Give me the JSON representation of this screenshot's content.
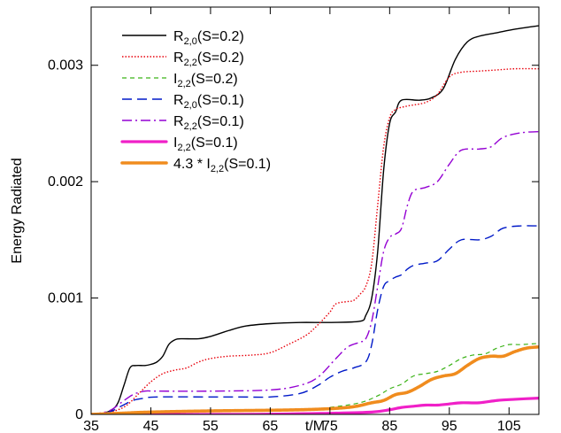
{
  "chart_data": {
    "type": "line",
    "title": "",
    "xlabel": "t/M",
    "ylabel": "Energy Radiated",
    "xlim": [
      35,
      110
    ],
    "ylim": [
      0,
      0.0035
    ],
    "xticks": [
      35,
      45,
      55,
      65,
      75,
      85,
      95,
      105
    ],
    "xtick_labels": [
      "35",
      "45",
      "55",
      "65",
      "75",
      "85",
      "95",
      "105"
    ],
    "yticks": [
      0,
      0.001,
      0.002,
      0.003
    ],
    "ytick_labels": [
      "0",
      "0.001",
      "0.002",
      "0.003"
    ],
    "grid": false,
    "legend_position": "top-left",
    "series": [
      {
        "name": "R2,0(S=0.2)",
        "legend": {
          "base": "R",
          "sub": "2,0",
          "rest": "(S=0.2)"
        },
        "color": "#000000",
        "style": "solid",
        "points": [
          [
            35,
            0
          ],
          [
            37,
            1e-05
          ],
          [
            38.5,
            4e-05
          ],
          [
            39.5,
            0.0001
          ],
          [
            40.5,
            0.00025
          ],
          [
            41.5,
            0.0004
          ],
          [
            42.5,
            0.00042
          ],
          [
            44,
            0.00042
          ],
          [
            45,
            0.00043
          ],
          [
            46,
            0.00045
          ],
          [
            47,
            0.0005
          ],
          [
            48,
            0.0006
          ],
          [
            49,
            0.00064
          ],
          [
            50,
            0.00065
          ],
          [
            53,
            0.00065
          ],
          [
            55,
            0.00067
          ],
          [
            58,
            0.00072
          ],
          [
            61,
            0.00076
          ],
          [
            65,
            0.00078
          ],
          [
            70,
            0.00079
          ],
          [
            75,
            0.00079
          ],
          [
            80,
            0.0008
          ],
          [
            81,
            0.00085
          ],
          [
            82,
            0.001
          ],
          [
            83,
            0.0014
          ],
          [
            84,
            0.0021
          ],
          [
            85,
            0.0025
          ],
          [
            86,
            0.0026
          ],
          [
            87,
            0.0027
          ],
          [
            90,
            0.0027
          ],
          [
            92,
            0.00272
          ],
          [
            94,
            0.0028
          ],
          [
            96,
            0.00305
          ],
          [
            98,
            0.0032
          ],
          [
            100,
            0.00325
          ],
          [
            103,
            0.00328
          ],
          [
            106,
            0.00331
          ],
          [
            110,
            0.00334
          ]
        ]
      },
      {
        "name": "R2,2(S=0.2)",
        "legend": {
          "base": "R",
          "sub": "2,2",
          "rest": "(S=0.2)"
        },
        "color": "#e8000b",
        "style": "dotted",
        "points": [
          [
            35,
            0
          ],
          [
            37,
            1e-05
          ],
          [
            39,
            3e-05
          ],
          [
            41,
            8e-05
          ],
          [
            43,
            0.00018
          ],
          [
            45,
            0.00028
          ],
          [
            47,
            0.00035
          ],
          [
            49,
            0.00038
          ],
          [
            51,
            0.0004
          ],
          [
            53,
            0.00045
          ],
          [
            55,
            0.00048
          ],
          [
            58,
            0.0005
          ],
          [
            62,
            0.00051
          ],
          [
            65,
            0.00053
          ],
          [
            68,
            0.0006
          ],
          [
            71,
            0.00068
          ],
          [
            73,
            0.00077
          ],
          [
            75,
            0.00088
          ],
          [
            76,
            0.00095
          ],
          [
            78,
            0.00097
          ],
          [
            79,
            0.00098
          ],
          [
            80,
            0.00103
          ],
          [
            81,
            0.0011
          ],
          [
            82,
            0.0013
          ],
          [
            83,
            0.0018
          ],
          [
            84,
            0.0023
          ],
          [
            85,
            0.00255
          ],
          [
            86,
            0.00262
          ],
          [
            88,
            0.00265
          ],
          [
            91,
            0.00268
          ],
          [
            93,
            0.00275
          ],
          [
            95,
            0.0029
          ],
          [
            97,
            0.00294
          ],
          [
            100,
            0.00295
          ],
          [
            103,
            0.00296
          ],
          [
            106,
            0.00297
          ],
          [
            110,
            0.00297
          ]
        ]
      },
      {
        "name": "I2,2(S=0.2)",
        "legend": {
          "base": "I",
          "sub": "2,2",
          "rest": "(S=0.2)"
        },
        "color": "#3cb318",
        "style": "short-dash",
        "points": [
          [
            35,
            0
          ],
          [
            40,
            1e-05
          ],
          [
            50,
            2e-05
          ],
          [
            60,
            3e-05
          ],
          [
            70,
            4e-05
          ],
          [
            75,
            6e-05
          ],
          [
            80,
            0.0001
          ],
          [
            83,
            0.00016
          ],
          [
            85,
            0.00022
          ],
          [
            87,
            0.00026
          ],
          [
            89,
            0.00033
          ],
          [
            91,
            0.00035
          ],
          [
            93,
            0.00037
          ],
          [
            95,
            0.00042
          ],
          [
            97,
            0.00048
          ],
          [
            99,
            0.00051
          ],
          [
            101,
            0.00052
          ],
          [
            103,
            0.00057
          ],
          [
            105,
            0.0006
          ],
          [
            107,
            0.0006
          ],
          [
            110,
            0.00061
          ]
        ]
      },
      {
        "name": "R2,0(S=0.1)",
        "legend": {
          "base": "R",
          "sub": "2,0",
          "rest": "(S=0.1)"
        },
        "color": "#0019c8",
        "style": "long-dash",
        "points": [
          [
            35,
            0
          ],
          [
            38,
            2e-05
          ],
          [
            40,
            7e-05
          ],
          [
            42,
            0.00012
          ],
          [
            44,
            0.00014
          ],
          [
            46,
            0.00015
          ],
          [
            55,
            0.00015
          ],
          [
            60,
            0.00015
          ],
          [
            65,
            0.00015
          ],
          [
            70,
            0.00018
          ],
          [
            73,
            0.00025
          ],
          [
            75,
            0.00032
          ],
          [
            77,
            0.00037
          ],
          [
            79,
            0.0004
          ],
          [
            81,
            0.00045
          ],
          [
            82,
            0.0006
          ],
          [
            83,
            0.0009
          ],
          [
            84,
            0.0011
          ],
          [
            85,
            0.00115
          ],
          [
            86,
            0.00118
          ],
          [
            87,
            0.0012
          ],
          [
            88,
            0.00125
          ],
          [
            89,
            0.00128
          ],
          [
            91,
            0.0013
          ],
          [
            93,
            0.00132
          ],
          [
            95,
            0.00142
          ],
          [
            97,
            0.0015
          ],
          [
            100,
            0.0015
          ],
          [
            102,
            0.00153
          ],
          [
            104,
            0.0016
          ],
          [
            107,
            0.00162
          ],
          [
            110,
            0.00162
          ]
        ]
      },
      {
        "name": "R2,2(S=0.1)",
        "legend": {
          "base": "R",
          "sub": "2,2",
          "rest": "(S=0.1)"
        },
        "color": "#9400d3",
        "style": "dash-dot",
        "points": [
          [
            35,
            0
          ],
          [
            38,
            3e-05
          ],
          [
            40,
            0.0001
          ],
          [
            42,
            0.00017
          ],
          [
            44,
            0.0002
          ],
          [
            46,
            0.0002
          ],
          [
            55,
            0.0002
          ],
          [
            65,
            0.00021
          ],
          [
            70,
            0.00025
          ],
          [
            73,
            0.00032
          ],
          [
            76,
            0.00048
          ],
          [
            78,
            0.00058
          ],
          [
            80,
            0.00062
          ],
          [
            81,
            0.00065
          ],
          [
            82,
            0.0008
          ],
          [
            83,
            0.0011
          ],
          [
            84,
            0.0014
          ],
          [
            85,
            0.00152
          ],
          [
            86,
            0.00155
          ],
          [
            87,
            0.0016
          ],
          [
            88,
            0.0018
          ],
          [
            89,
            0.00192
          ],
          [
            91,
            0.00195
          ],
          [
            93,
            0.002
          ],
          [
            95,
            0.00215
          ],
          [
            97,
            0.00227
          ],
          [
            100,
            0.00228
          ],
          [
            102,
            0.0023
          ],
          [
            104,
            0.00238
          ],
          [
            107,
            0.00242
          ],
          [
            110,
            0.00243
          ]
        ]
      },
      {
        "name": "I2,2(S=0.1)",
        "legend": {
          "base": "I",
          "sub": "2,2",
          "rest": "(S=0.1)"
        },
        "color": "#f020c8",
        "style": "thick-solid",
        "points": [
          [
            35,
            0
          ],
          [
            60,
            0
          ],
          [
            75,
            1e-05
          ],
          [
            82,
            2e-05
          ],
          [
            85,
            4e-05
          ],
          [
            87,
            6e-05
          ],
          [
            89,
            7e-05
          ],
          [
            91,
            8e-05
          ],
          [
            93,
            8e-05
          ],
          [
            95,
            9e-05
          ],
          [
            97,
            0.0001
          ],
          [
            100,
            0.0001
          ],
          [
            103,
            0.00012
          ],
          [
            106,
            0.00013
          ],
          [
            110,
            0.00014
          ]
        ]
      },
      {
        "name": "4.3 * I2,2(S=0.1)",
        "legend": {
          "base": "4.3 * I",
          "sub": "2,2",
          "rest": "(S=0.1)"
        },
        "color": "#f08c1e",
        "style": "thick-dotted",
        "points": [
          [
            35,
            0
          ],
          [
            40,
            1e-05
          ],
          [
            45,
            2e-05
          ],
          [
            55,
            3e-05
          ],
          [
            70,
            4e-05
          ],
          [
            78,
            6e-05
          ],
          [
            82,
            0.0001
          ],
          [
            84,
            0.00012
          ],
          [
            86,
            0.00017
          ],
          [
            88,
            0.00019
          ],
          [
            90,
            0.00024
          ],
          [
            92,
            0.0003
          ],
          [
            94,
            0.00033
          ],
          [
            96,
            0.00035
          ],
          [
            98,
            0.00042
          ],
          [
            100,
            0.00048
          ],
          [
            102,
            0.0005
          ],
          [
            104,
            0.0005
          ],
          [
            106,
            0.00054
          ],
          [
            108,
            0.00057
          ],
          [
            110,
            0.00058
          ]
        ]
      }
    ]
  }
}
